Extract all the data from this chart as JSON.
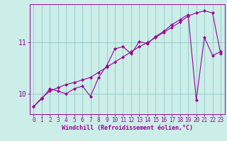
{
  "xlabel": "Windchill (Refroidissement éolien,°C)",
  "bg_color": "#cceee8",
  "line_color": "#990099",
  "grid_color": "#99cccc",
  "xlim": [
    -0.5,
    23.5
  ],
  "ylim": [
    9.6,
    11.75
  ],
  "yticks": [
    10,
    11
  ],
  "xticks": [
    0,
    1,
    2,
    3,
    4,
    5,
    6,
    7,
    8,
    9,
    10,
    11,
    12,
    13,
    14,
    15,
    16,
    17,
    18,
    19,
    20,
    21,
    22,
    23
  ],
  "series1_x": [
    0,
    1,
    2,
    3,
    4,
    5,
    6,
    7,
    8,
    9,
    10,
    11,
    12,
    13,
    14,
    15,
    16,
    17,
    18,
    19,
    20,
    21,
    22,
    23
  ],
  "series1_y": [
    9.75,
    9.92,
    10.05,
    10.12,
    10.18,
    10.22,
    10.27,
    10.32,
    10.42,
    10.52,
    10.62,
    10.72,
    10.82,
    10.92,
    11.0,
    11.1,
    11.2,
    11.3,
    11.4,
    11.52,
    11.58,
    11.62,
    11.58,
    10.78
  ],
  "series2_x": [
    0,
    1,
    2,
    3,
    4,
    5,
    6,
    7,
    8,
    9,
    10,
    11,
    12,
    13,
    14,
    15,
    16,
    17,
    18,
    19,
    20,
    21,
    22,
    23
  ],
  "series2_y": [
    9.75,
    9.9,
    10.1,
    10.05,
    10.0,
    10.1,
    10.15,
    9.95,
    10.32,
    10.55,
    10.88,
    10.92,
    10.78,
    11.02,
    10.98,
    11.12,
    11.22,
    11.35,
    11.45,
    11.55,
    9.88,
    11.1,
    10.75,
    10.82
  ],
  "xlabel_fontsize": 6,
  "tick_fontsize": 5.5,
  "ytick_fontsize": 7
}
